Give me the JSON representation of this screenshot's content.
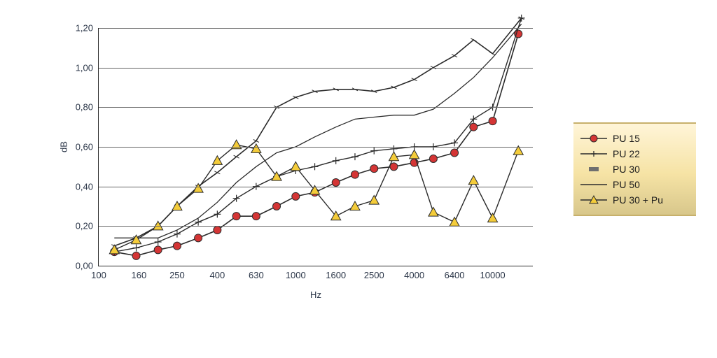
{
  "chart": {
    "type": "line",
    "xlabel": "Hz",
    "ylabel": "dB",
    "background_color": "#ffffff",
    "grid_color": "#666666",
    "axis_color": "#2b2b2b",
    "text_color": "#2b3648",
    "ylim": [
      0.0,
      1.2
    ],
    "ytick_step": 0.2,
    "yticks": [
      "0,00",
      "0,20",
      "0,40",
      "0,60",
      "0,80",
      "1,00",
      "1,20"
    ],
    "xscale": "log",
    "xlim": [
      100,
      16000
    ],
    "xticks": [
      100,
      160,
      250,
      400,
      630,
      1000,
      1600,
      2500,
      4000,
      6400,
      10000
    ],
    "xtick_labels": [
      "100",
      "160",
      "250",
      "400",
      "630",
      "1000",
      "1600",
      "2500",
      "4000",
      "6400",
      "10000"
    ],
    "label_fontsize": 13,
    "tick_fontsize": 13,
    "series": [
      {
        "name": "PU 15",
        "marker": "circle",
        "marker_fill": "#d43535",
        "marker_stroke": "#2b2b2b",
        "marker_size": 5.5,
        "line_color": "#2b2b2b",
        "line_width": 1.6,
        "x": [
          120,
          155,
          200,
          250,
          320,
          400,
          500,
          630,
          800,
          1000,
          1250,
          1600,
          2000,
          2500,
          3150,
          4000,
          5000,
          6400,
          8000,
          10000,
          13500
        ],
        "y": [
          0.07,
          0.05,
          0.08,
          0.1,
          0.14,
          0.18,
          0.25,
          0.25,
          0.3,
          0.35,
          0.37,
          0.42,
          0.46,
          0.49,
          0.5,
          0.52,
          0.54,
          0.57,
          0.7,
          0.73,
          1.17
        ]
      },
      {
        "name": "PU 22",
        "marker": "plus",
        "marker_fill": "none",
        "marker_stroke": "#2b2b2b",
        "marker_size": 5,
        "line_color": "#2b2b2b",
        "line_width": 1.4,
        "x": [
          120,
          155,
          200,
          250,
          320,
          400,
          500,
          630,
          800,
          1000,
          1250,
          1600,
          2000,
          2500,
          3150,
          4000,
          5000,
          6400,
          8000,
          10000,
          14000
        ],
        "y": [
          0.07,
          0.09,
          0.12,
          0.16,
          0.22,
          0.26,
          0.34,
          0.4,
          0.45,
          0.48,
          0.5,
          0.53,
          0.55,
          0.58,
          0.59,
          0.6,
          0.6,
          0.62,
          0.74,
          0.8,
          1.25
        ]
      },
      {
        "name": "PU 30",
        "marker": "tick",
        "marker_fill": "none",
        "marker_stroke": "#2b2b2b",
        "marker_size": 4,
        "line_color": "#2b2b2b",
        "line_width": 1.6,
        "x": [
          120,
          155,
          200,
          250,
          320,
          400,
          500,
          630,
          800,
          1000,
          1250,
          1600,
          2000,
          2500,
          3150,
          4000,
          5000,
          6400,
          8000,
          10000,
          14000
        ],
        "y": [
          0.1,
          0.14,
          0.2,
          0.3,
          0.4,
          0.47,
          0.55,
          0.63,
          0.8,
          0.85,
          0.88,
          0.89,
          0.89,
          0.88,
          0.9,
          0.94,
          1.0,
          1.06,
          1.14,
          1.07,
          1.25
        ]
      },
      {
        "name": "PU 50",
        "marker": "none",
        "marker_fill": "none",
        "marker_stroke": "#2b2b2b",
        "marker_size": 0,
        "line_color": "#2b2b2b",
        "line_width": 1.3,
        "x": [
          120,
          155,
          200,
          250,
          320,
          400,
          500,
          630,
          800,
          1000,
          1250,
          1600,
          2000,
          2500,
          3150,
          4000,
          5000,
          6400,
          8000,
          10000,
          14000
        ],
        "y": [
          0.14,
          0.14,
          0.14,
          0.18,
          0.24,
          0.32,
          0.42,
          0.5,
          0.57,
          0.6,
          0.65,
          0.7,
          0.74,
          0.75,
          0.76,
          0.76,
          0.79,
          0.87,
          0.95,
          1.05,
          1.22
        ]
      },
      {
        "name": "PU 30 + Pu",
        "marker": "triangle",
        "marker_fill": "#f4cc3a",
        "marker_stroke": "#2b2b2b",
        "marker_size": 7,
        "line_color": "#2b2b2b",
        "line_width": 1.4,
        "x": [
          120,
          155,
          200,
          250,
          320,
          400,
          500,
          630,
          800,
          1000,
          1250,
          1600,
          2000,
          2500,
          3150,
          4000,
          5000,
          6400,
          8000,
          10000,
          13500
        ],
        "y": [
          0.08,
          0.13,
          0.2,
          0.3,
          0.39,
          0.53,
          0.61,
          0.59,
          0.45,
          0.5,
          0.38,
          0.25,
          0.3,
          0.33,
          0.55,
          0.56,
          0.27,
          0.22,
          0.43,
          0.24,
          0.58
        ]
      }
    ]
  },
  "legend": {
    "title": null,
    "background_gradient": [
      "#fff5d8",
      "#f6e3a5",
      "#d8c78b"
    ],
    "items": [
      {
        "label": "PU 15",
        "marker": "circle",
        "fill": "#d43535",
        "stroke": "#2b2b2b"
      },
      {
        "label": "PU 22",
        "marker": "plus",
        "fill": "none",
        "stroke": "#2b2b2b"
      },
      {
        "label": "PU 30",
        "marker": "dash",
        "fill": "#6f6f6f",
        "stroke": "#6f6f6f"
      },
      {
        "label": "PU 50",
        "marker": "line",
        "fill": "none",
        "stroke": "#2b2b2b"
      },
      {
        "label": "PU 30 + Pu",
        "marker": "triangle",
        "fill": "#f4cc3a",
        "stroke": "#2b2b2b"
      }
    ]
  }
}
